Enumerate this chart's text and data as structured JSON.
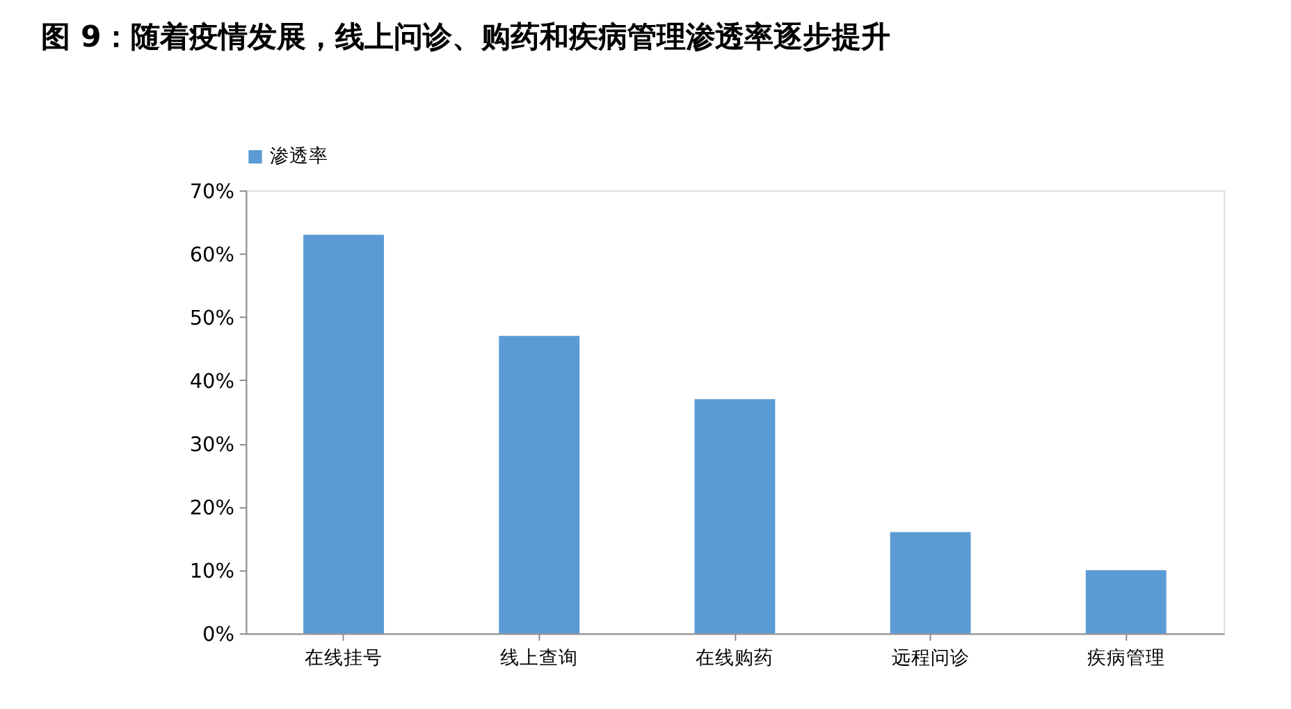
{
  "chart_data": {
    "type": "bar",
    "title": "图 9：随着疫情发展，线上问诊、购药和疾病管理渗透率逐步提升",
    "categories": [
      "在线挂号",
      "线上查询",
      "在线购药",
      "远程问诊",
      "疾病管理"
    ],
    "series": [
      {
        "name": "渗透率",
        "color": "#5b9bd5",
        "values": [
          63,
          47,
          37,
          16,
          10
        ]
      }
    ],
    "ylim": [
      0,
      70
    ],
    "yticks": [
      {
        "value": 0,
        "label": "0%"
      },
      {
        "value": 10,
        "label": "10%"
      },
      {
        "value": 20,
        "label": "20%"
      },
      {
        "value": 30,
        "label": "30%"
      },
      {
        "value": 40,
        "label": "40%"
      },
      {
        "value": 50,
        "label": "50%"
      },
      {
        "value": 60,
        "label": "60%"
      },
      {
        "value": 70,
        "label": "70%"
      }
    ],
    "grid": false,
    "legend": "top"
  }
}
